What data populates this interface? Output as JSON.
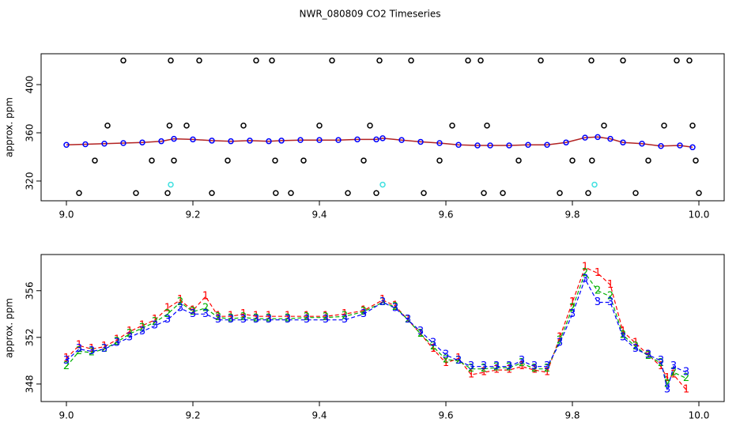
{
  "title": "NWR_080809  CO2 Timeseries",
  "chart_data": [
    {
      "type": "scatter",
      "ylabel": "approx. ppm",
      "xlim": [
        8.96,
        10.04
      ],
      "ylim": [
        303.6,
        425.6
      ],
      "xticks": [
        {
          "value": 9,
          "label": "9.0"
        },
        9.2,
        9.4,
        9.6,
        9.8,
        {
          "value": 10,
          "label": "10.0"
        }
      ],
      "yticks": [
        320,
        360,
        400
      ],
      "series": [
        {
          "color": "#0000ff",
          "line_color": "#b22222",
          "line": true,
          "marker": "circle",
          "x": [
            9.0,
            9.03,
            9.06,
            9.09,
            9.12,
            9.15,
            9.17,
            9.2,
            9.23,
            9.26,
            9.29,
            9.32,
            9.34,
            9.37,
            9.4,
            9.43,
            9.46,
            9.49,
            9.5,
            9.53,
            9.56,
            9.59,
            9.62,
            9.65,
            9.67,
            9.7,
            9.73,
            9.76,
            9.79,
            9.82,
            9.84,
            9.86,
            9.88,
            9.91,
            9.94,
            9.97,
            9.99
          ],
          "values": [
            350,
            350.5,
            351,
            351.5,
            352,
            353,
            355,
            354.5,
            353.5,
            353,
            353.5,
            353,
            353.5,
            354,
            354,
            354,
            354.5,
            354.5,
            355.5,
            354,
            352.5,
            351.5,
            350,
            349.5,
            349.5,
            349.5,
            350,
            350,
            352,
            356,
            356.5,
            355,
            352,
            351,
            349,
            349.5,
            348
          ]
        },
        {
          "color": "#000000",
          "line": false,
          "marker": "circle",
          "x": [
            9.02,
            9.065,
            9.045,
            9.09,
            9.11,
            9.135,
            9.16,
            9.163,
            9.165,
            9.17,
            9.19,
            9.21,
            9.23,
            9.255,
            9.28,
            9.3,
            9.325,
            9.33,
            9.331,
            9.355,
            9.375,
            9.4,
            9.42,
            9.445,
            9.47,
            9.48,
            9.495,
            9.49,
            9.545,
            9.565,
            9.59,
            9.61,
            9.635,
            9.655,
            9.66,
            9.665,
            9.69,
            9.715,
            9.75,
            9.78,
            9.8,
            9.825,
            9.83,
            9.831,
            9.85,
            9.88,
            9.9,
            9.92,
            9.945,
            9.965,
            9.985,
            9.99,
            9.995,
            10.0
          ],
          "values": [
            310,
            366,
            337,
            420,
            310,
            337,
            310,
            366,
            420,
            337,
            366,
            420,
            310,
            337,
            366,
            420,
            420,
            337,
            310,
            310,
            337,
            366,
            420,
            310,
            337,
            366,
            420,
            310,
            420,
            310,
            337,
            366,
            420,
            420,
            310,
            366,
            310,
            337,
            420,
            310,
            337,
            310,
            420,
            337,
            366,
            420,
            310,
            337,
            366,
            420,
            420,
            366,
            337,
            310
          ]
        },
        {
          "color": "#40e0e0",
          "line": false,
          "marker": "circle",
          "x": [
            9.165,
            9.5,
            9.835
          ],
          "values": [
            317,
            317,
            317
          ]
        }
      ]
    },
    {
      "type": "line",
      "ylabel": "approx. ppm",
      "xlim": [
        8.96,
        10.04
      ],
      "ylim": [
        346.5,
        359.1
      ],
      "xticks": [
        {
          "value": 9,
          "label": "9.0"
        },
        9.2,
        9.4,
        9.6,
        9.8,
        {
          "value": 10,
          "label": "10.0"
        }
      ],
      "yticks": [
        348,
        352,
        356
      ],
      "x": [
        9.0,
        9.02,
        9.04,
        9.06,
        9.08,
        9.1,
        9.12,
        9.14,
        9.16,
        9.18,
        9.2,
        9.22,
        9.24,
        9.26,
        9.28,
        9.3,
        9.32,
        9.35,
        9.38,
        9.41,
        9.44,
        9.47,
        9.5,
        9.52,
        9.54,
        9.56,
        9.58,
        9.6,
        9.62,
        9.64,
        9.66,
        9.68,
        9.7,
        9.72,
        9.74,
        9.76,
        9.78,
        9.8,
        9.82,
        9.84,
        9.86,
        9.88,
        9.9,
        9.92,
        9.94,
        9.95,
        9.96,
        9.98
      ],
      "series": [
        {
          "name": "1",
          "color": "#ff0000",
          "values": [
            350.2,
            351.3,
            351,
            351.2,
            351.8,
            352.5,
            353,
            353.5,
            354.5,
            355.2,
            354.3,
            355.5,
            353.8,
            353.8,
            354,
            353.8,
            353.8,
            353.8,
            353.8,
            353.8,
            354,
            354.3,
            355.2,
            354.7,
            353.5,
            352.3,
            351,
            349.8,
            350.2,
            348.8,
            349,
            349.2,
            349.2,
            349.5,
            349.2,
            349,
            352,
            355,
            358,
            357.5,
            356.5,
            352.5,
            351.5,
            350.5,
            349.5,
            348.5,
            348.8,
            347.5
          ]
        },
        {
          "name": "2",
          "color": "#00b000",
          "values": [
            349.5,
            350.8,
            350.7,
            351,
            351.6,
            352.3,
            352.8,
            353.3,
            354,
            355,
            354.2,
            354.5,
            353.7,
            353.6,
            353.7,
            353.6,
            353.6,
            353.6,
            353.7,
            353.7,
            353.8,
            354.2,
            355,
            354.6,
            353.5,
            352.3,
            351.2,
            350.1,
            350,
            349.3,
            349.3,
            349.4,
            349.4,
            349.8,
            349.3,
            349.3,
            351.7,
            354.5,
            357.5,
            356,
            355.5,
            352.2,
            351.2,
            350.4,
            349.8,
            348,
            349,
            348.5
          ]
        },
        {
          "name": "3",
          "color": "#0000ff",
          "values": [
            350,
            351,
            350.8,
            351,
            351.5,
            352,
            352.5,
            353,
            353.5,
            354.5,
            354,
            354,
            353.5,
            353.5,
            353.5,
            353.5,
            353.5,
            353.5,
            353.5,
            353.5,
            353.5,
            354,
            355,
            354.5,
            353.5,
            352.5,
            351.5,
            350.5,
            350,
            349.5,
            349.5,
            349.5,
            349.5,
            350,
            349.5,
            349.5,
            351.5,
            354,
            357,
            355,
            355,
            352,
            351,
            350.5,
            350,
            347.5,
            349.5,
            349
          ]
        }
      ]
    }
  ]
}
